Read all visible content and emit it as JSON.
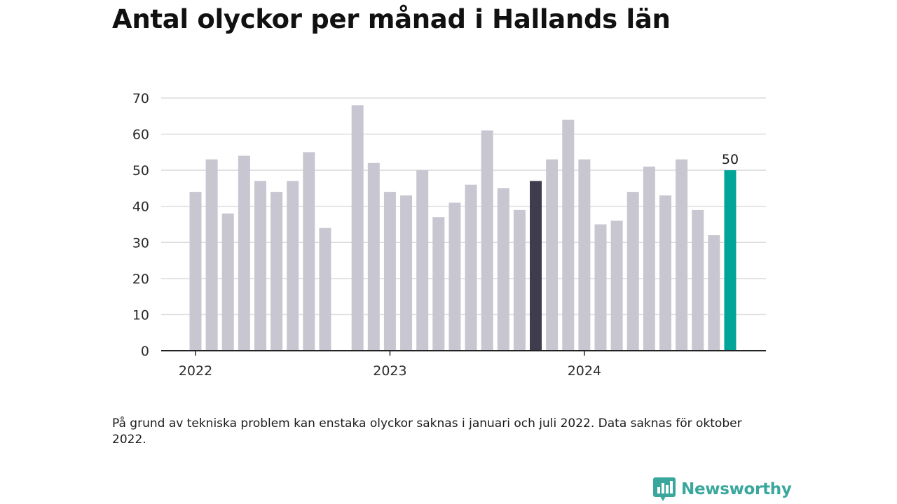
{
  "title": "Antal olyckor per månad i Hallands län",
  "note": "På grund av tekniska problem kan enstaka olyckor saknas i januari och juli 2022. Data saknas för oktober 2022.",
  "brand": {
    "name": "Newsworthy",
    "color": "#3aa79d"
  },
  "colors": {
    "bar": "#c8c7d1",
    "prev_year_same_month": "#3f3d4d",
    "latest": "#00a59a",
    "grid": "#dcdcdc",
    "axis": "#222222"
  },
  "chart_data": {
    "type": "bar",
    "ylim": [
      0,
      70
    ],
    "yticks": [
      0,
      10,
      20,
      30,
      40,
      50,
      60,
      70
    ],
    "xtick_labels": [
      "2022",
      "2023",
      "2024"
    ],
    "xtick_months": [
      "2022-01",
      "2023-01",
      "2024-01"
    ],
    "grid": "horizontal",
    "months": [
      "2022-01",
      "2022-02",
      "2022-03",
      "2022-04",
      "2022-05",
      "2022-06",
      "2022-07",
      "2022-08",
      "2022-09",
      "2022-10",
      "2022-11",
      "2022-12",
      "2023-01",
      "2023-02",
      "2023-03",
      "2023-04",
      "2023-05",
      "2023-06",
      "2023-07",
      "2023-08",
      "2023-09",
      "2023-10",
      "2023-11",
      "2023-12",
      "2024-01",
      "2024-02",
      "2024-03",
      "2024-04",
      "2024-05",
      "2024-06",
      "2024-07",
      "2024-08",
      "2024-09",
      "2024-10"
    ],
    "values": [
      44,
      53,
      38,
      54,
      47,
      44,
      47,
      55,
      34,
      null,
      68,
      52,
      44,
      43,
      50,
      37,
      41,
      46,
      61,
      45,
      39,
      47,
      53,
      64,
      53,
      35,
      36,
      44,
      51,
      43,
      53,
      39,
      32,
      50
    ],
    "highlight_dark_month": "2023-10",
    "highlight_latest_month": "2024-10",
    "data_labels": [
      {
        "month": "2024-10",
        "text": "50"
      }
    ]
  }
}
